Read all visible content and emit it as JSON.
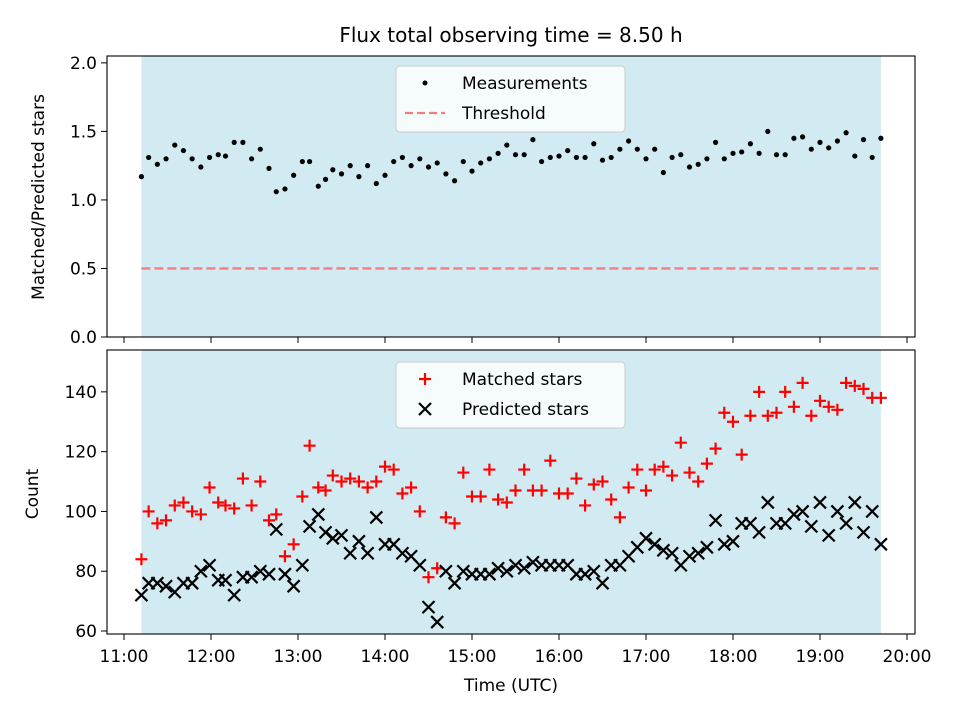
{
  "chart_data": [
    {
      "type": "scatter",
      "title": "Flux total observing time = 8.50 h",
      "xlabel": "",
      "ylabel": "Matched/Predicted stars",
      "x_unit": "time of day (UTC, HH:MM)",
      "xlim": [
        "11:00",
        "20:00"
      ],
      "ylim": [
        0,
        2.05
      ],
      "ytick_labels": [
        "0.0",
        "0.5",
        "1.0",
        "1.5",
        "2.0"
      ],
      "shaded_span": [
        "11:12",
        "19:42"
      ],
      "shade_color": "#add8e6",
      "grid": false,
      "legend_position": "top-center",
      "series": [
        {
          "name": "Measurements",
          "marker": "dot",
          "color": "#000000",
          "x": [
            "11:12",
            "11:17",
            "11:23",
            "11:29",
            "11:35",
            "11:41",
            "11:47",
            "11:53",
            "11:59",
            "12:05",
            "12:10",
            "12:16",
            "12:22",
            "12:28",
            "12:34",
            "12:40",
            "12:45",
            "12:51",
            "12:57",
            "13:03",
            "13:08",
            "13:14",
            "13:19",
            "13:24",
            "13:30",
            "13:36",
            "13:42",
            "13:48",
            "13:54",
            "14:00",
            "14:06",
            "14:12",
            "14:18",
            "14:24",
            "14:30",
            "14:36",
            "14:42",
            "14:48",
            "14:54",
            "15:00",
            "15:06",
            "15:12",
            "15:18",
            "15:24",
            "15:30",
            "15:36",
            "15:42",
            "15:48",
            "15:54",
            "16:00",
            "16:06",
            "16:12",
            "16:18",
            "16:24",
            "16:30",
            "16:36",
            "16:42",
            "16:48",
            "16:54",
            "17:00",
            "17:06",
            "17:12",
            "17:18",
            "17:24",
            "17:30",
            "17:36",
            "17:42",
            "17:48",
            "17:54",
            "18:00",
            "18:06",
            "18:12",
            "18:18",
            "18:24",
            "18:30",
            "18:36",
            "18:42",
            "18:48",
            "18:54",
            "19:00",
            "19:06",
            "19:12",
            "19:18",
            "19:24",
            "19:30",
            "19:36",
            "19:42"
          ],
          "y": [
            1.17,
            1.31,
            1.26,
            1.3,
            1.4,
            1.36,
            1.3,
            1.24,
            1.31,
            1.33,
            1.32,
            1.42,
            1.42,
            1.3,
            1.37,
            1.23,
            1.06,
            1.08,
            1.18,
            1.28,
            1.28,
            1.1,
            1.15,
            1.22,
            1.19,
            1.25,
            1.17,
            1.25,
            1.12,
            1.18,
            1.28,
            1.31,
            1.25,
            1.3,
            1.24,
            1.27,
            1.19,
            1.14,
            1.28,
            1.21,
            1.27,
            1.3,
            1.34,
            1.4,
            1.33,
            1.33,
            1.44,
            1.28,
            1.31,
            1.32,
            1.36,
            1.31,
            1.31,
            1.41,
            1.29,
            1.31,
            1.37,
            1.43,
            1.37,
            1.3,
            1.37,
            1.2,
            1.31,
            1.33,
            1.24,
            1.26,
            1.3,
            1.42,
            1.3,
            1.34,
            1.35,
            1.41,
            1.34,
            1.5,
            1.33,
            1.33,
            1.45,
            1.46,
            1.37,
            1.42,
            1.38,
            1.43,
            1.49,
            1.32,
            1.44,
            1.31,
            1.45
          ]
        },
        {
          "name": "Threshold",
          "marker": "dashed-line",
          "color": "#f08080",
          "x": [
            "11:12",
            "19:42"
          ],
          "y": [
            0.5,
            0.5
          ]
        }
      ]
    },
    {
      "type": "scatter",
      "title": "",
      "xlabel": "Time (UTC)",
      "ylabel": "Count",
      "x_unit": "time of day (UTC, HH:MM)",
      "xlim": [
        "11:00",
        "20:00"
      ],
      "ylim": [
        59,
        154
      ],
      "xtick_labels": [
        "11:00",
        "12:00",
        "13:00",
        "14:00",
        "15:00",
        "16:00",
        "17:00",
        "18:00",
        "19:00",
        "20:00"
      ],
      "ytick_labels": [
        "60",
        "80",
        "100",
        "120",
        "140"
      ],
      "shaded_span": [
        "11:12",
        "19:42"
      ],
      "shade_color": "#add8e6",
      "grid": false,
      "legend_position": "top-center",
      "series": [
        {
          "name": "Matched stars",
          "marker": "plus",
          "color": "#ff0000",
          "x": [
            "11:12",
            "11:17",
            "11:23",
            "11:29",
            "11:35",
            "11:41",
            "11:47",
            "11:53",
            "11:59",
            "12:05",
            "12:10",
            "12:16",
            "12:22",
            "12:28",
            "12:34",
            "12:40",
            "12:45",
            "12:51",
            "12:57",
            "13:03",
            "13:08",
            "13:14",
            "13:19",
            "13:24",
            "13:30",
            "13:36",
            "13:42",
            "13:48",
            "13:54",
            "14:00",
            "14:06",
            "14:12",
            "14:18",
            "14:24",
            "14:30",
            "14:36",
            "14:42",
            "14:48",
            "14:54",
            "15:00",
            "15:06",
            "15:12",
            "15:18",
            "15:24",
            "15:30",
            "15:36",
            "15:42",
            "15:48",
            "15:54",
            "16:00",
            "16:06",
            "16:12",
            "16:18",
            "16:24",
            "16:30",
            "16:36",
            "16:42",
            "16:48",
            "16:54",
            "17:00",
            "17:06",
            "17:12",
            "17:18",
            "17:24",
            "17:30",
            "17:36",
            "17:42",
            "17:48",
            "17:54",
            "18:00",
            "18:06",
            "18:12",
            "18:18",
            "18:24",
            "18:30",
            "18:36",
            "18:42",
            "18:48",
            "18:54",
            "19:00",
            "19:06",
            "19:12",
            "19:18",
            "19:24",
            "19:30",
            "19:36",
            "19:42"
          ],
          "y": [
            84,
            100,
            96,
            97,
            102,
            103,
            100,
            99,
            108,
            103,
            102,
            101,
            111,
            102,
            110,
            97,
            99,
            85,
            89,
            105,
            122,
            108,
            107,
            112,
            110,
            111,
            110,
            108,
            110,
            115,
            114,
            106,
            108,
            100,
            78,
            81,
            98,
            96,
            113,
            105,
            105,
            114,
            104,
            103,
            107,
            114,
            107,
            107,
            117,
            106,
            106,
            111,
            102,
            109,
            110,
            104,
            98,
            108,
            114,
            107,
            114,
            115,
            112,
            123,
            113,
            110,
            116,
            121,
            133,
            130,
            119,
            132,
            140,
            132,
            133,
            140,
            135,
            143,
            132,
            137,
            135,
            134,
            143,
            142,
            141,
            138,
            138
          ]
        },
        {
          "name": "Predicted stars",
          "marker": "x",
          "color": "#000000",
          "x": [
            "11:12",
            "11:17",
            "11:23",
            "11:29",
            "11:35",
            "11:41",
            "11:47",
            "11:53",
            "11:59",
            "12:05",
            "12:10",
            "12:16",
            "12:22",
            "12:28",
            "12:34",
            "12:40",
            "12:45",
            "12:51",
            "12:57",
            "13:03",
            "13:08",
            "13:14",
            "13:19",
            "13:24",
            "13:30",
            "13:36",
            "13:42",
            "13:48",
            "13:54",
            "14:00",
            "14:06",
            "14:12",
            "14:18",
            "14:24",
            "14:30",
            "14:36",
            "14:42",
            "14:48",
            "14:54",
            "15:00",
            "15:06",
            "15:12",
            "15:18",
            "15:24",
            "15:30",
            "15:36",
            "15:42",
            "15:48",
            "15:54",
            "16:00",
            "16:06",
            "16:12",
            "16:18",
            "16:24",
            "16:30",
            "16:36",
            "16:42",
            "16:48",
            "16:54",
            "17:00",
            "17:06",
            "17:12",
            "17:18",
            "17:24",
            "17:30",
            "17:36",
            "17:42",
            "17:48",
            "17:54",
            "18:00",
            "18:06",
            "18:12",
            "18:18",
            "18:24",
            "18:30",
            "18:36",
            "18:42",
            "18:48",
            "18:54",
            "19:00",
            "19:06",
            "19:12",
            "19:18",
            "19:24",
            "19:30",
            "19:36",
            "19:42"
          ],
          "y": [
            72,
            76,
            76,
            75,
            73,
            76,
            76,
            80,
            82,
            77,
            77,
            72,
            78,
            78,
            80,
            79,
            94,
            79,
            75,
            82,
            95,
            99,
            93,
            91,
            92,
            86,
            90,
            86,
            98,
            89,
            89,
            86,
            85,
            82,
            68,
            63,
            80,
            76,
            80,
            79,
            79,
            79,
            81,
            80,
            82,
            81,
            83,
            82,
            82,
            82,
            82,
            79,
            79,
            80,
            76,
            82,
            82,
            85,
            88,
            91,
            89,
            87,
            86,
            82,
            85,
            86,
            88,
            97,
            89,
            90,
            96,
            96,
            93,
            103,
            96,
            96,
            99,
            100,
            95,
            103,
            92,
            100,
            96,
            103,
            93,
            100,
            89
          ]
        }
      ]
    }
  ]
}
